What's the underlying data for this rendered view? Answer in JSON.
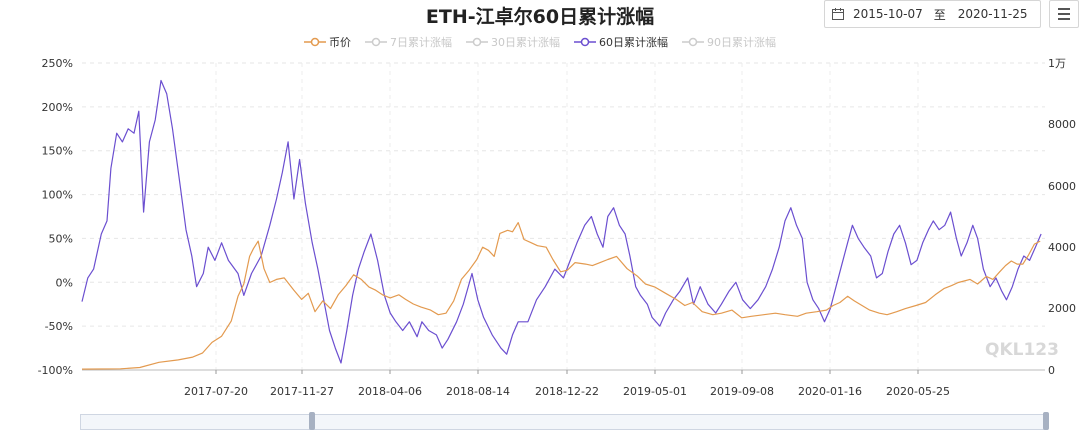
{
  "title": "ETH-江卓尔60日累计涨幅",
  "date_range": {
    "start": "2015-10-07",
    "separator": "至",
    "end": "2020-11-25"
  },
  "watermark": "QKL123",
  "legend": [
    {
      "label": "币价",
      "color": "#e39a4f",
      "active": true
    },
    {
      "label": "7日累计涨幅",
      "color": "#cccccc",
      "active": false
    },
    {
      "label": "30日累计涨幅",
      "color": "#cccccc",
      "active": false
    },
    {
      "label": "60日累计涨幅",
      "color": "#6b4fd0",
      "active": true
    },
    {
      "label": "90日累计涨幅",
      "color": "#cccccc",
      "active": false
    }
  ],
  "chart_data": {
    "type": "line",
    "title": "ETH-江卓尔60日累计涨幅",
    "x_tick_labels": [
      "2017-07-20",
      "2017-11-27",
      "2018-04-06",
      "2018-08-14",
      "2018-12-22",
      "2019-05-01",
      "2019-09-08",
      "2020-01-16",
      "2020-05-25"
    ],
    "left_axis": {
      "ticks": [
        "250%",
        "200%",
        "150%",
        "100%",
        "50%",
        "0%",
        "-50%",
        "-100%"
      ],
      "range": [
        -100,
        250
      ]
    },
    "right_axis": {
      "ticks": [
        "1万",
        "8000",
        "6000",
        "4000",
        "2000",
        "0"
      ],
      "range": [
        0,
        10000
      ]
    },
    "grid": true,
    "series": [
      {
        "name": "60日累计涨幅",
        "axis": "left",
        "color": "#6b4fd0",
        "points": [
          [
            0,
            -22
          ],
          [
            0.6,
            5
          ],
          [
            1.2,
            15
          ],
          [
            2.0,
            55
          ],
          [
            2.6,
            70
          ],
          [
            3.0,
            130
          ],
          [
            3.6,
            170
          ],
          [
            4.2,
            160
          ],
          [
            4.8,
            175
          ],
          [
            5.4,
            170
          ],
          [
            5.9,
            195
          ],
          [
            6.4,
            80
          ],
          [
            7.0,
            160
          ],
          [
            7.6,
            185
          ],
          [
            8.2,
            230
          ],
          [
            8.8,
            215
          ],
          [
            9.4,
            175
          ],
          [
            10.2,
            110
          ],
          [
            10.8,
            60
          ],
          [
            11.4,
            30
          ],
          [
            11.9,
            -5
          ],
          [
            12.6,
            10
          ],
          [
            13.1,
            40
          ],
          [
            13.8,
            25
          ],
          [
            14.5,
            45
          ],
          [
            15.2,
            25
          ],
          [
            16.2,
            10
          ],
          [
            16.8,
            -15
          ],
          [
            17.6,
            10
          ],
          [
            18.6,
            30
          ],
          [
            19.5,
            65
          ],
          [
            20.2,
            95
          ],
          [
            20.8,
            125
          ],
          [
            21.4,
            160
          ],
          [
            22.0,
            95
          ],
          [
            22.6,
            140
          ],
          [
            23.2,
            90
          ],
          [
            23.9,
            45
          ],
          [
            24.5,
            15
          ],
          [
            25.1,
            -20
          ],
          [
            25.7,
            -55
          ],
          [
            26.3,
            -75
          ],
          [
            26.9,
            -92
          ],
          [
            27.5,
            -55
          ],
          [
            28.1,
            -15
          ],
          [
            28.7,
            15
          ],
          [
            29.3,
            35
          ],
          [
            30.0,
            55
          ],
          [
            30.7,
            25
          ],
          [
            31.4,
            -15
          ],
          [
            32.0,
            -35
          ],
          [
            32.6,
            -45
          ],
          [
            33.3,
            -55
          ],
          [
            34.0,
            -45
          ],
          [
            34.8,
            -62
          ],
          [
            35.3,
            -45
          ],
          [
            36.0,
            -55
          ],
          [
            36.8,
            -60
          ],
          [
            37.4,
            -75
          ],
          [
            38.0,
            -65
          ],
          [
            38.9,
            -45
          ],
          [
            39.6,
            -25
          ],
          [
            40.5,
            10
          ],
          [
            41.1,
            -20
          ],
          [
            41.7,
            -40
          ],
          [
            42.6,
            -60
          ],
          [
            43.5,
            -75
          ],
          [
            44.1,
            -82
          ],
          [
            44.7,
            -60
          ],
          [
            45.3,
            -45
          ],
          [
            46.3,
            -45
          ],
          [
            47.2,
            -20
          ],
          [
            48.1,
            -5
          ],
          [
            49.1,
            15
          ],
          [
            50.0,
            5
          ],
          [
            50.7,
            25
          ],
          [
            51.4,
            45
          ],
          [
            52.2,
            65
          ],
          [
            52.9,
            75
          ],
          [
            53.5,
            55
          ],
          [
            54.1,
            40
          ],
          [
            54.6,
            75
          ],
          [
            55.2,
            85
          ],
          [
            55.8,
            65
          ],
          [
            56.4,
            55
          ],
          [
            56.9,
            30
          ],
          [
            57.5,
            -5
          ],
          [
            58.0,
            -15
          ],
          [
            58.7,
            -25
          ],
          [
            59.2,
            -40
          ],
          [
            60.0,
            -50
          ],
          [
            60.6,
            -35
          ],
          [
            61.4,
            -20
          ],
          [
            62.1,
            -10
          ],
          [
            62.9,
            5
          ],
          [
            63.5,
            -25
          ],
          [
            64.2,
            -5
          ],
          [
            65.0,
            -25
          ],
          [
            65.8,
            -35
          ],
          [
            66.4,
            -25
          ],
          [
            67.2,
            -10
          ],
          [
            67.9,
            0
          ],
          [
            68.6,
            -20
          ],
          [
            69.4,
            -30
          ],
          [
            70.2,
            -20
          ],
          [
            71.0,
            -5
          ],
          [
            71.7,
            15
          ],
          [
            72.4,
            40
          ],
          [
            73.0,
            70
          ],
          [
            73.6,
            85
          ],
          [
            74.2,
            65
          ],
          [
            74.8,
            50
          ],
          [
            75.3,
            0
          ],
          [
            75.9,
            -20
          ],
          [
            76.5,
            -30
          ],
          [
            77.1,
            -45
          ],
          [
            77.7,
            -30
          ],
          [
            78.3,
            -5
          ],
          [
            78.9,
            20
          ],
          [
            79.5,
            45
          ],
          [
            80.0,
            65
          ],
          [
            80.6,
            50
          ],
          [
            81.2,
            40
          ],
          [
            81.9,
            30
          ],
          [
            82.5,
            5
          ],
          [
            83.1,
            10
          ],
          [
            83.7,
            35
          ],
          [
            84.3,
            55
          ],
          [
            84.9,
            65
          ],
          [
            85.5,
            45
          ],
          [
            86.1,
            20
          ],
          [
            86.7,
            25
          ],
          [
            87.3,
            45
          ],
          [
            87.9,
            60
          ],
          [
            88.4,
            70
          ],
          [
            89.0,
            60
          ],
          [
            89.6,
            65
          ],
          [
            90.2,
            80
          ],
          [
            90.8,
            50
          ],
          [
            91.3,
            30
          ],
          [
            91.9,
            45
          ],
          [
            92.5,
            65
          ],
          [
            93.0,
            50
          ],
          [
            93.6,
            15
          ],
          [
            94.3,
            -5
          ],
          [
            94.9,
            5
          ],
          [
            95.5,
            -10
          ],
          [
            96.0,
            -20
          ],
          [
            96.6,
            -5
          ],
          [
            97.2,
            15
          ],
          [
            97.8,
            30
          ],
          [
            98.4,
            25
          ],
          [
            99.0,
            40
          ],
          [
            99.6,
            55
          ]
        ]
      },
      {
        "name": "币价",
        "axis": "right",
        "color": "#e39a4f",
        "points": [
          [
            0,
            30
          ],
          [
            4.0,
            40
          ],
          [
            6.0,
            80
          ],
          [
            8.0,
            250
          ],
          [
            10.0,
            330
          ],
          [
            11.5,
            420
          ],
          [
            12.5,
            550
          ],
          [
            13.5,
            900
          ],
          [
            14.5,
            1100
          ],
          [
            15.5,
            1600
          ],
          [
            16.2,
            2400
          ],
          [
            16.8,
            2800
          ],
          [
            17.4,
            3700
          ],
          [
            17.8,
            3950
          ],
          [
            18.3,
            4200
          ],
          [
            18.9,
            3300
          ],
          [
            19.5,
            2850
          ],
          [
            20.2,
            2950
          ],
          [
            21.0,
            3000
          ],
          [
            22.0,
            2600
          ],
          [
            22.8,
            2300
          ],
          [
            23.5,
            2500
          ],
          [
            24.2,
            1900
          ],
          [
            25.0,
            2250
          ],
          [
            25.8,
            2000
          ],
          [
            26.6,
            2450
          ],
          [
            27.4,
            2750
          ],
          [
            28.2,
            3100
          ],
          [
            29.0,
            2950
          ],
          [
            29.8,
            2700
          ],
          [
            30.5,
            2600
          ],
          [
            31.2,
            2450
          ],
          [
            32.0,
            2350
          ],
          [
            32.9,
            2450
          ],
          [
            33.6,
            2300
          ],
          [
            34.4,
            2150
          ],
          [
            35.2,
            2050
          ],
          [
            36.2,
            1950
          ],
          [
            37.0,
            1800
          ],
          [
            37.8,
            1850
          ],
          [
            38.6,
            2250
          ],
          [
            39.4,
            2950
          ],
          [
            40.2,
            3250
          ],
          [
            41.0,
            3600
          ],
          [
            41.6,
            4000
          ],
          [
            42.2,
            3900
          ],
          [
            42.8,
            3700
          ],
          [
            43.4,
            4450
          ],
          [
            44.2,
            4550
          ],
          [
            44.7,
            4500
          ],
          [
            45.3,
            4800
          ],
          [
            45.9,
            4250
          ],
          [
            46.6,
            4150
          ],
          [
            47.3,
            4050
          ],
          [
            48.2,
            4000
          ],
          [
            48.9,
            3600
          ],
          [
            49.7,
            3200
          ],
          [
            50.4,
            3250
          ],
          [
            51.2,
            3500
          ],
          [
            52.3,
            3450
          ],
          [
            53.0,
            3400
          ],
          [
            53.8,
            3500
          ],
          [
            54.6,
            3600
          ],
          [
            55.5,
            3700
          ],
          [
            56.6,
            3300
          ],
          [
            57.7,
            3050
          ],
          [
            58.5,
            2800
          ],
          [
            59.5,
            2700
          ],
          [
            60.6,
            2500
          ],
          [
            61.7,
            2300
          ],
          [
            62.6,
            2100
          ],
          [
            63.4,
            2200
          ],
          [
            64.4,
            1900
          ],
          [
            65.5,
            1800
          ],
          [
            66.4,
            1850
          ],
          [
            67.5,
            1950
          ],
          [
            68.5,
            1700
          ],
          [
            69.5,
            1750
          ],
          [
            70.8,
            1800
          ],
          [
            72.0,
            1850
          ],
          [
            73.0,
            1800
          ],
          [
            74.3,
            1750
          ],
          [
            75.2,
            1850
          ],
          [
            76.3,
            1900
          ],
          [
            77.3,
            1950
          ],
          [
            78.0,
            2100
          ],
          [
            78.7,
            2200
          ],
          [
            79.5,
            2400
          ],
          [
            80.2,
            2250
          ],
          [
            81.0,
            2100
          ],
          [
            81.8,
            1950
          ],
          [
            82.8,
            1850
          ],
          [
            83.6,
            1800
          ],
          [
            84.6,
            1900
          ],
          [
            85.5,
            2000
          ],
          [
            86.6,
            2100
          ],
          [
            87.6,
            2200
          ],
          [
            88.6,
            2450
          ],
          [
            89.5,
            2650
          ],
          [
            90.3,
            2750
          ],
          [
            91.0,
            2850
          ],
          [
            91.6,
            2900
          ],
          [
            92.2,
            2950
          ],
          [
            93.0,
            2800
          ],
          [
            93.9,
            3050
          ],
          [
            94.6,
            2950
          ],
          [
            95.3,
            3200
          ],
          [
            95.9,
            3400
          ],
          [
            96.5,
            3550
          ],
          [
            97.1,
            3450
          ],
          [
            97.7,
            3450
          ],
          [
            98.3,
            3750
          ],
          [
            98.9,
            4100
          ],
          [
            99.5,
            4200
          ]
        ]
      }
    ]
  }
}
